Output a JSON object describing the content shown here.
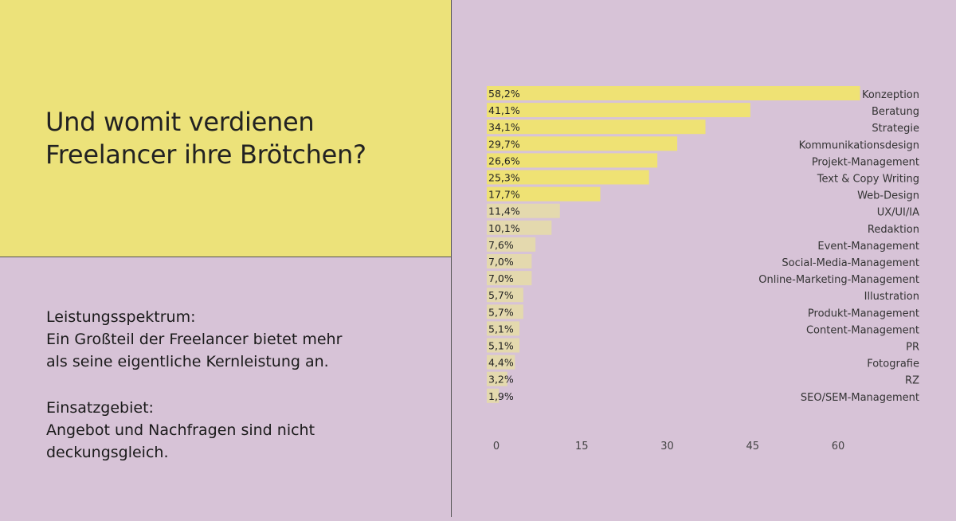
{
  "headline": {
    "line1": "Und womit verdienen",
    "line2": "Freelancer ihre Brötchen?"
  },
  "text_blocks": [
    {
      "heading": "Leistungsspektrum:",
      "line1": "Ein Großteil der Freelancer bietet mehr",
      "line2": "als seine eigentliche Kernleistung an."
    },
    {
      "heading": "Einsatzgebiet:",
      "line1": "Angebot und Nachfragen sind nicht",
      "line2": "deckungsgleich."
    }
  ],
  "colors": {
    "bar_strong": "#efe274",
    "bar_weak": "#e4d9ae",
    "bg_yellow": "#ece27a",
    "bg_mauve": "#d7c3d7"
  },
  "chart_data": {
    "type": "bar",
    "orientation": "horizontal",
    "categories": [
      "Konzeption",
      "Beratung",
      "Strategie",
      "Kommunikationsdesign",
      "Projekt-Management",
      "Text & Copy Writing",
      "Web-Design",
      "UX/UI/IA",
      "Redaktion",
      "Event-Management",
      "Social-Media-Management",
      "Online-Marketing-Management",
      "Illustration",
      "Produkt-Management",
      "Content-Management",
      "PR",
      "Fotografie",
      "RZ",
      "SEO/SEM-Management"
    ],
    "values": [
      58.2,
      41.1,
      34.1,
      29.7,
      26.6,
      25.3,
      17.7,
      11.4,
      10.1,
      7.6,
      7.0,
      7.0,
      5.7,
      5.7,
      5.1,
      5.1,
      4.4,
      3.2,
      1.9
    ],
    "value_labels": [
      "58,2%",
      "41,1%",
      "34,1%",
      "29,7%",
      "26,6%",
      "25,3%",
      "17,7%",
      "11,4%",
      "10,1%",
      "7,6%",
      "7,0%",
      "7,0%",
      "5,7%",
      "5,7%",
      "5,1%",
      "5,1%",
      "4,4%",
      "3,2%",
      "1,9%"
    ],
    "xticks": [
      "0",
      "15",
      "30",
      "45",
      "60"
    ],
    "xlim": [
      0,
      60
    ],
    "grid": false,
    "legend": "none"
  }
}
